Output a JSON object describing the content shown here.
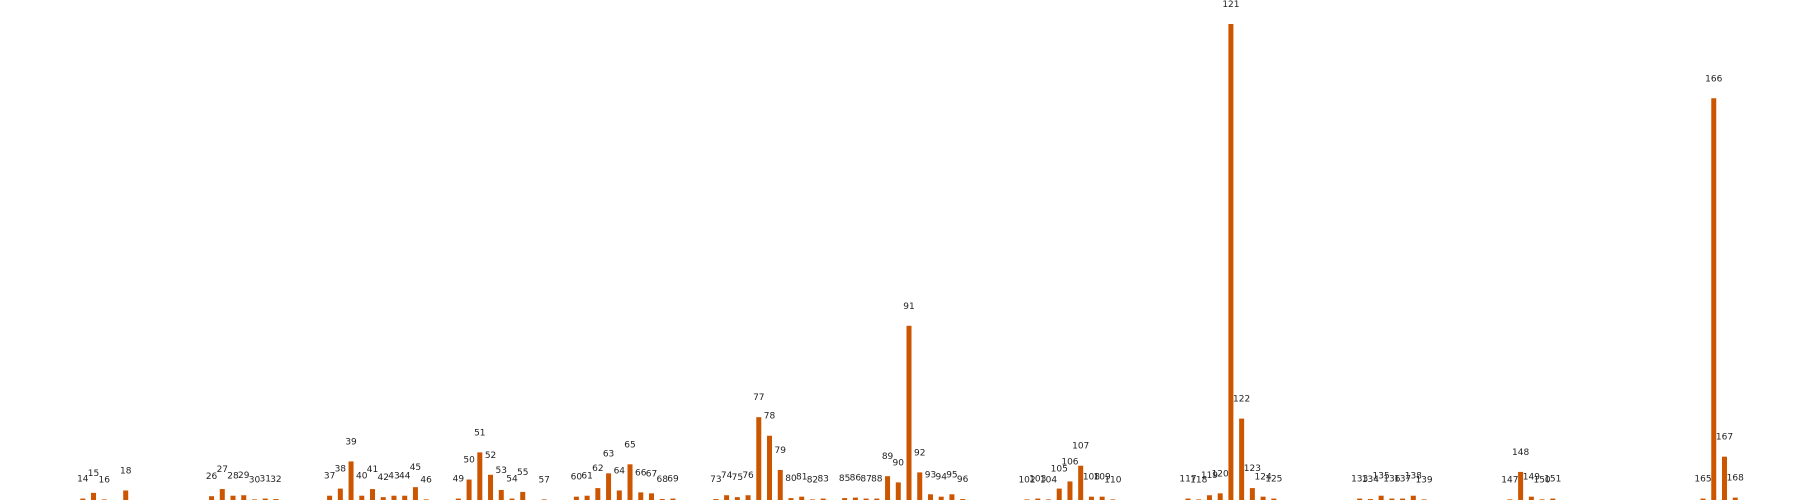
{
  "chart_data": {
    "type": "bar",
    "color": "#cc5500",
    "grid": false,
    "axes_visible": false,
    "title": "",
    "xlabel": "",
    "ylabel": "",
    "ylim": [
      0,
      100
    ],
    "bars": [
      {
        "label": "14",
        "x": 14,
        "value": 0.3
      },
      {
        "label": "15",
        "x": 15,
        "value": 1.5
      },
      {
        "label": "16",
        "x": 16,
        "value": 0.1
      },
      {
        "label": "18",
        "x": 18,
        "value": 2.0
      },
      {
        "label": "26",
        "x": 26,
        "value": 0.8
      },
      {
        "label": "27",
        "x": 27,
        "value": 2.3
      },
      {
        "label": "28",
        "x": 28,
        "value": 0.9
      },
      {
        "label": "29",
        "x": 29,
        "value": 1.0
      },
      {
        "label": "30",
        "x": 30,
        "value": 0.1
      },
      {
        "label": "31",
        "x": 31,
        "value": 0.3
      },
      {
        "label": "32",
        "x": 32,
        "value": 0.2
      },
      {
        "label": "37",
        "x": 37,
        "value": 0.9
      },
      {
        "label": "38",
        "x": 38,
        "value": 2.4
      },
      {
        "label": "39",
        "x": 39,
        "value": 8.1
      },
      {
        "label": "40",
        "x": 40,
        "value": 0.9
      },
      {
        "label": "41",
        "x": 41,
        "value": 2.3
      },
      {
        "label": "42",
        "x": 42,
        "value": 0.6
      },
      {
        "label": "43",
        "x": 43,
        "value": 0.9
      },
      {
        "label": "44",
        "x": 44,
        "value": 0.9
      },
      {
        "label": "45",
        "x": 45,
        "value": 2.7
      },
      {
        "label": "46",
        "x": 46,
        "value": 0.0
      },
      {
        "label": "49",
        "x": 49,
        "value": 0.3
      },
      {
        "label": "50",
        "x": 50,
        "value": 4.3
      },
      {
        "label": "51",
        "x": 51,
        "value": 10.0
      },
      {
        "label": "52",
        "x": 52,
        "value": 5.3
      },
      {
        "label": "53",
        "x": 53,
        "value": 2.1
      },
      {
        "label": "54",
        "x": 54,
        "value": 0.3
      },
      {
        "label": "55",
        "x": 55,
        "value": 1.7
      },
      {
        "label": "57",
        "x": 57,
        "value": 0.0
      },
      {
        "label": "60",
        "x": 60,
        "value": 0.7
      },
      {
        "label": "61",
        "x": 61,
        "value": 0.9
      },
      {
        "label": "62",
        "x": 62,
        "value": 2.5
      },
      {
        "label": "63",
        "x": 63,
        "value": 5.6
      },
      {
        "label": "64",
        "x": 64,
        "value": 2.0
      },
      {
        "label": "65",
        "x": 65,
        "value": 7.5
      },
      {
        "label": "66",
        "x": 66,
        "value": 1.6
      },
      {
        "label": "67",
        "x": 67,
        "value": 1.4
      },
      {
        "label": "68",
        "x": 68,
        "value": 0.2
      },
      {
        "label": "69",
        "x": 69,
        "value": 0.3
      },
      {
        "label": "73",
        "x": 73,
        "value": 0.2
      },
      {
        "label": "74",
        "x": 74,
        "value": 1.0
      },
      {
        "label": "75",
        "x": 75,
        "value": 0.6
      },
      {
        "label": "76",
        "x": 76,
        "value": 1.0
      },
      {
        "label": "77",
        "x": 77,
        "value": 17.4
      },
      {
        "label": "78",
        "x": 78,
        "value": 13.5
      },
      {
        "label": "79",
        "x": 79,
        "value": 6.3
      },
      {
        "label": "80",
        "x": 80,
        "value": 0.4
      },
      {
        "label": "81",
        "x": 81,
        "value": 0.7
      },
      {
        "label": "82",
        "x": 82,
        "value": 0.1
      },
      {
        "label": "83",
        "x": 83,
        "value": 0.3
      },
      {
        "label": "85",
        "x": 85,
        "value": 0.4
      },
      {
        "label": "86",
        "x": 86,
        "value": 0.5
      },
      {
        "label": "87",
        "x": 87,
        "value": 0.3
      },
      {
        "label": "88",
        "x": 88,
        "value": 0.3
      },
      {
        "label": "89",
        "x": 89,
        "value": 5.0
      },
      {
        "label": "90",
        "x": 90,
        "value": 3.7
      },
      {
        "label": "91",
        "x": 91,
        "value": 36.6
      },
      {
        "label": "92",
        "x": 92,
        "value": 5.8
      },
      {
        "label": "93",
        "x": 93,
        "value": 1.2
      },
      {
        "label": "94",
        "x": 94,
        "value": 0.7
      },
      {
        "label": "95",
        "x": 95,
        "value": 1.2
      },
      {
        "label": "96",
        "x": 96,
        "value": 0.2
      },
      {
        "label": "102",
        "x": 102,
        "value": 0.0
      },
      {
        "label": "103",
        "x": 103,
        "value": 0.3
      },
      {
        "label": "104",
        "x": 104,
        "value": 0.0
      },
      {
        "label": "105",
        "x": 105,
        "value": 2.4
      },
      {
        "label": "106",
        "x": 106,
        "value": 3.9
      },
      {
        "label": "107",
        "x": 107,
        "value": 7.2
      },
      {
        "label": "108",
        "x": 108,
        "value": 0.7
      },
      {
        "label": "109",
        "x": 109,
        "value": 0.7
      },
      {
        "label": "110",
        "x": 110,
        "value": 0.0
      },
      {
        "label": "117",
        "x": 117,
        "value": 0.3
      },
      {
        "label": "118",
        "x": 118,
        "value": 0.0
      },
      {
        "label": "119",
        "x": 119,
        "value": 1.0
      },
      {
        "label": "120",
        "x": 120,
        "value": 1.4
      },
      {
        "label": "121",
        "x": 121,
        "value": 100.0
      },
      {
        "label": "122",
        "x": 122,
        "value": 17.1
      },
      {
        "label": "123",
        "x": 123,
        "value": 2.5
      },
      {
        "label": "124",
        "x": 124,
        "value": 0.7
      },
      {
        "label": "125",
        "x": 125,
        "value": 0.3
      },
      {
        "label": "133",
        "x": 133,
        "value": 0.3
      },
      {
        "label": "134",
        "x": 134,
        "value": 0.2
      },
      {
        "label": "135",
        "x": 135,
        "value": 0.9
      },
      {
        "label": "136",
        "x": 136,
        "value": 0.3
      },
      {
        "label": "137",
        "x": 137,
        "value": 0.3
      },
      {
        "label": "138",
        "x": 138,
        "value": 0.9
      },
      {
        "label": "139",
        "x": 139,
        "value": 0.0
      },
      {
        "label": "147",
        "x": 147,
        "value": 0.0
      },
      {
        "label": "148",
        "x": 148,
        "value": 5.9
      },
      {
        "label": "149",
        "x": 149,
        "value": 0.7
      },
      {
        "label": "150",
        "x": 150,
        "value": 0.0
      },
      {
        "label": "151",
        "x": 151,
        "value": 0.3
      },
      {
        "label": "165",
        "x": 165,
        "value": 0.3
      },
      {
        "label": "166",
        "x": 166,
        "value": 84.4
      },
      {
        "label": "167",
        "x": 167,
        "value": 9.1
      },
      {
        "label": "168",
        "x": 168,
        "value": 0.5
      }
    ]
  }
}
